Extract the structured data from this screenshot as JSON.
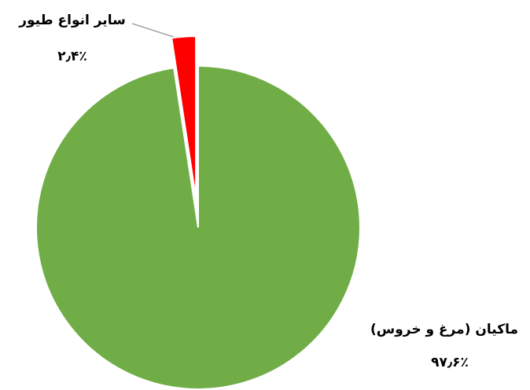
{
  "chart_data": {
    "type": "pie",
    "categories": [
      "ماکیان (مرغ و خروس)",
      "سایر انواع طیور"
    ],
    "values": [
      97.6,
      2.4
    ],
    "value_labels": [
      "۹۷٫۶٪",
      "۲٫۴٪"
    ],
    "colors": [
      "#70ad47",
      "#ff0000"
    ]
  }
}
